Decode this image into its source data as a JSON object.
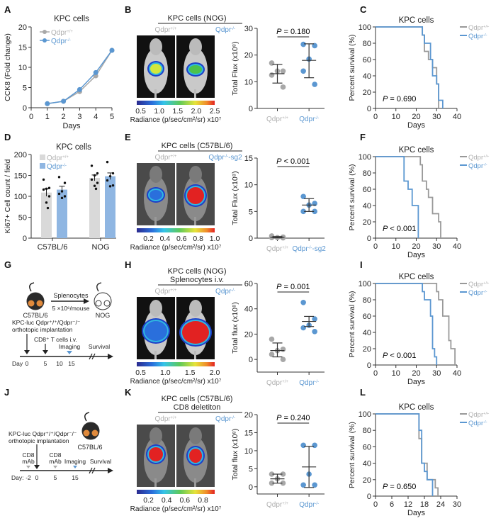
{
  "colors": {
    "wt": "#a8a8a8",
    "ko": "#5b97d1",
    "wt_bar": "#d9d9d9",
    "ko_bar": "#8fb6e2",
    "axis": "#333333",
    "wt_label": "#b0b0b0",
    "ko_label": "#5b97d1"
  },
  "panel_letters": [
    "A",
    "B",
    "C",
    "D",
    "E",
    "F",
    "G",
    "H",
    "I",
    "J",
    "K",
    "L"
  ],
  "chart_data": [
    {
      "id": "A",
      "type": "line",
      "title": "KPC cells",
      "xlabel": "Days",
      "ylabel": "CCK8 (Fold change)",
      "xlim": [
        0,
        5
      ],
      "ylim": [
        0,
        20
      ],
      "xticks": [
        0,
        1,
        2,
        3,
        4,
        5
      ],
      "yticks": [
        0,
        5,
        10,
        15,
        20
      ],
      "legend": "top-left",
      "series": [
        {
          "name": "Qdpr+/+",
          "x": [
            1,
            2,
            3,
            4,
            5
          ],
          "values": [
            1.0,
            1.6,
            4.0,
            7.9,
            14.2
          ]
        },
        {
          "name": "Qdpr-/-",
          "x": [
            1,
            2,
            3,
            4,
            5
          ],
          "values": [
            1.0,
            1.6,
            4.5,
            8.7,
            14.2
          ]
        }
      ]
    },
    {
      "id": "B",
      "type": "scatter",
      "image_title": "KPC cells (NOG)",
      "image_labels": [
        "Qdpr+/+",
        "Qdpr-/-"
      ],
      "colorbar_ticks": [
        "0.5",
        "1.0",
        "1.5",
        "2.0",
        "2.5"
      ],
      "colorbar_label": "Radiance (p/sec/cm²/sr) x10⁷",
      "ylabel": "Total Flux (x10⁸)",
      "ylim": [
        0,
        30
      ],
      "yticks": [
        0,
        10,
        20,
        30
      ],
      "categories": [
        "Qdpr+/+",
        "Qdpr-/-"
      ],
      "pvalue": "P = 0.180",
      "series": [
        {
          "name": "Qdpr+/+",
          "values": [
            17,
            14,
            14,
            12.5,
            8
          ],
          "mean": 13,
          "sd": [
            9.5,
            16.5
          ]
        },
        {
          "name": "Qdpr-/-",
          "values": [
            24,
            23.5,
            18.5,
            14,
            9
          ],
          "mean": 18,
          "sd": [
            11.5,
            24.2
          ]
        }
      ]
    },
    {
      "id": "C",
      "type": "line",
      "subtype": "kaplan-meier",
      "title": "KPC cells",
      "xlabel": "Days",
      "ylabel": "Percent survival (%)",
      "xlim": [
        0,
        40
      ],
      "ylim": [
        0,
        100
      ],
      "xticks": [
        0,
        10,
        20,
        30,
        40
      ],
      "yticks": [
        0,
        20,
        40,
        60,
        80,
        100
      ],
      "pvalue": "P = 0.690",
      "legend": "top-right",
      "series": [
        {
          "name": "Qdpr+/+",
          "x": [
            0,
            23,
            24,
            26,
            28,
            30,
            31
          ],
          "values": [
            100,
            90,
            70,
            60,
            50,
            30,
            0
          ]
        },
        {
          "name": "Qdpr-/-",
          "x": [
            0,
            23,
            24,
            27,
            28,
            30,
            31,
            33
          ],
          "values": [
            100,
            90,
            80,
            60,
            40,
            30,
            10,
            0
          ]
        }
      ]
    },
    {
      "id": "D",
      "type": "bar",
      "title": "KPC cells",
      "ylabel": "Ki67+ Cell count / field",
      "ylim": [
        0,
        200
      ],
      "yticks": [
        0,
        50,
        100,
        150,
        200
      ],
      "categories": [
        "C57BL/6",
        "NOG"
      ],
      "legend": "top-left",
      "series": [
        {
          "name": "Qdpr+/+",
          "values": [
            109,
            144
          ],
          "sem": [
            9,
            7
          ],
          "points": [
            [
              140,
              120,
              118,
              116,
              100,
              85,
              72
            ],
            [
              173,
              155,
              150,
              140,
              132,
              125,
              118
            ]
          ]
        },
        {
          "name": "Qdpr-/-",
          "values": [
            116,
            148
          ],
          "sem": [
            8,
            8
          ],
          "points": [
            [
              146,
              132,
              112,
              106,
              100,
              96
            ],
            [
              182,
              155,
              148,
              138,
              126,
              124
            ]
          ]
        }
      ]
    },
    {
      "id": "E",
      "type": "scatter",
      "image_title": "KPC cells (C57BL/6)",
      "image_labels": [
        "Qdpr+/+",
        "Qdpr-/--sg2"
      ],
      "colorbar_ticks": [
        "0.2",
        "0.4",
        "0.6",
        "0.8",
        "1.0"
      ],
      "colorbar_label": "Radiance (p/sec/cm²/sr) x10⁷",
      "ylabel": "Total Flux (x10⁸)",
      "ylim": [
        0,
        15
      ],
      "yticks": [
        0,
        5,
        10,
        15
      ],
      "categories": [
        "Qdpr+/+",
        "Qdpr-/--sg2"
      ],
      "pvalue": "P < 0.001",
      "series": [
        {
          "name": "Qdpr+/+",
          "values": [
            0.4,
            0.2,
            0.1,
            0.1,
            0.05
          ],
          "mean": 0.15,
          "sd": [
            0.05,
            0.3
          ]
        },
        {
          "name": "Qdpr-/--sg2",
          "values": [
            7.8,
            6.5,
            6.2,
            5.0,
            5.0
          ],
          "mean": 6.2,
          "sd": [
            5.0,
            7.4
          ]
        }
      ]
    },
    {
      "id": "F",
      "type": "line",
      "subtype": "kaplan-meier",
      "title": "KPC cells",
      "xlabel": "Days",
      "ylabel": "Percent survival (%)",
      "xlim": [
        0,
        40
      ],
      "ylim": [
        0,
        100
      ],
      "xticks": [
        0,
        10,
        20,
        30,
        40
      ],
      "yticks": [
        0,
        20,
        40,
        60,
        80,
        100
      ],
      "pvalue": "P < 0.001",
      "legend": "top-right",
      "series": [
        {
          "name": "Qdpr+/+",
          "x": [
            0,
            22,
            23,
            25,
            26,
            28,
            31,
            32
          ],
          "values": [
            100,
            90,
            70,
            60,
            50,
            30,
            20,
            0
          ]
        },
        {
          "name": "Qdpr-/-",
          "x": [
            0,
            14,
            16,
            18,
            21
          ],
          "values": [
            100,
            70,
            60,
            40,
            0
          ]
        }
      ]
    },
    {
      "id": "H",
      "type": "scatter",
      "image_title": "KPC cells (NOG)",
      "image_subtitle": "Splenocytes i.v.",
      "image_labels": [
        "Qdpr+/+",
        "Qdpr-/-"
      ],
      "colorbar_ticks": [
        "0.5",
        "1.0",
        "1.5",
        "2.0"
      ],
      "colorbar_label": "Radiance (p/sec/cm²/sr) x10⁷",
      "ylabel": "Total flux (x10⁸)",
      "ylim": [
        -10,
        60
      ],
      "yticks": [
        0,
        20,
        40,
        60
      ],
      "categories": [
        "Qdpr+/+",
        "Qdpr-/-"
      ],
      "pvalue": "P = 0.001",
      "series": [
        {
          "name": "Qdpr+/+",
          "values": [
            16,
            8,
            7,
            4,
            0
          ],
          "mean": 7,
          "sd": [
            2,
            13
          ]
        },
        {
          "name": "Qdpr-/-",
          "values": [
            45,
            32,
            27,
            25,
            22
          ],
          "mean": 30,
          "sd": [
            26,
            34
          ]
        }
      ]
    },
    {
      "id": "I",
      "type": "line",
      "subtype": "kaplan-meier",
      "title": "KPC cells",
      "xlabel": "Days",
      "ylabel": "Percent survival (%)",
      "xlim": [
        0,
        40
      ],
      "ylim": [
        0,
        100
      ],
      "xticks": [
        0,
        10,
        20,
        30,
        40
      ],
      "yticks": [
        0,
        20,
        40,
        60,
        80,
        100
      ],
      "pvalue": "P < 0.001",
      "legend": "top-right",
      "series": [
        {
          "name": "Qdpr+/+",
          "x": [
            0,
            30,
            31,
            33,
            36,
            37,
            39
          ],
          "values": [
            100,
            90,
            80,
            60,
            30,
            20,
            0
          ]
        },
        {
          "name": "Qdpr-/-",
          "x": [
            0,
            23,
            24,
            27,
            28,
            29,
            30
          ],
          "values": [
            100,
            90,
            80,
            60,
            20,
            10,
            0
          ]
        }
      ]
    },
    {
      "id": "K",
      "type": "scatter",
      "image_title": "KPC cells (C57BL/6)",
      "image_subtitle": "CD8 deletiton",
      "image_labels": [
        "Qdpr+/+",
        "Qdpr-/-"
      ],
      "colorbar_ticks": [
        "0.2",
        "0.4",
        "0.6",
        "0.8"
      ],
      "colorbar_label": "Radiance (p/sec/cm²/sr)  x10⁷",
      "ylabel": "Total flux (x10⁸)",
      "ylim": [
        -2,
        20
      ],
      "yticks": [
        0,
        5,
        10,
        15,
        20
      ],
      "categories": [
        "Qdpr+/+",
        "Qdpr-/-"
      ],
      "pvalue": "P = 0.240",
      "series": [
        {
          "name": "Qdpr+/+",
          "values": [
            3.5,
            3.5,
            2.2,
            1.0,
            1.0
          ],
          "mean": 2.2,
          "sd": [
            1.0,
            3.5
          ]
        },
        {
          "name": "Qdpr-/-",
          "values": [
            11.5,
            11.5,
            3.5,
            0.5,
            0.5
          ],
          "mean": 5.5,
          "sd": [
            -0.2,
            11.2
          ]
        }
      ]
    },
    {
      "id": "L",
      "type": "line",
      "subtype": "kaplan-meier",
      "title": "KPC cells",
      "xlabel": "Days",
      "ylabel": "Percent survival (%)",
      "xlim": [
        0,
        30
      ],
      "ylim": [
        0,
        100
      ],
      "xticks": [
        0,
        6,
        12,
        18,
        24,
        30
      ],
      "yticks": [
        0,
        20,
        40,
        60,
        80,
        100
      ],
      "pvalue": "P = 0.650",
      "legend": "top-right",
      "series": [
        {
          "name": "Qdpr+/+",
          "x": [
            0,
            16,
            17,
            19,
            20,
            22,
            23
          ],
          "values": [
            100,
            70,
            40,
            20,
            20,
            10,
            0
          ]
        },
        {
          "name": "Qdpr-/-",
          "x": [
            0,
            16,
            17,
            18,
            19,
            20,
            21
          ],
          "values": [
            100,
            80,
            40,
            30,
            20,
            20,
            0
          ]
        }
      ]
    }
  ],
  "legend_labels": {
    "wt": "Qdpr",
    "wt_sup": "+/+",
    "ko": "Qdpr",
    "ko_sup": "-/-",
    "ko_sg2_suffix": "-sg2"
  },
  "schematic_G": {
    "donor": "C57BL/6",
    "recipient": "NOG",
    "arrow_top": "Splenocytes",
    "arrow_bottom": "5 ×10⁶/mouse",
    "implant_line1": "KPC-luc Qdpr⁺/⁺/Qdpr⁻/⁻",
    "implant_line2": "orthotopic implantation",
    "tcells": "CD8⁺ T cells i.v.",
    "imaging": "Imaging",
    "survival": "Survival",
    "day_label": "Day",
    "days": [
      "0",
      "5",
      "10",
      "15"
    ]
  },
  "schematic_J": {
    "mouse": "C57BL/6",
    "implant_line1": "KPC-luc Qdpr⁺/⁺/Qdpr⁻/⁻",
    "implant_line2": "orthotopic implantation",
    "cd8_a": "CD8",
    "mab_a": "mAb",
    "cd8_b": "CD8",
    "mab_b": "mAb",
    "imaging": "Imaging",
    "survival": "Survival",
    "day_label": "Day:",
    "days": [
      "-2",
      "0",
      "5",
      "15"
    ]
  }
}
